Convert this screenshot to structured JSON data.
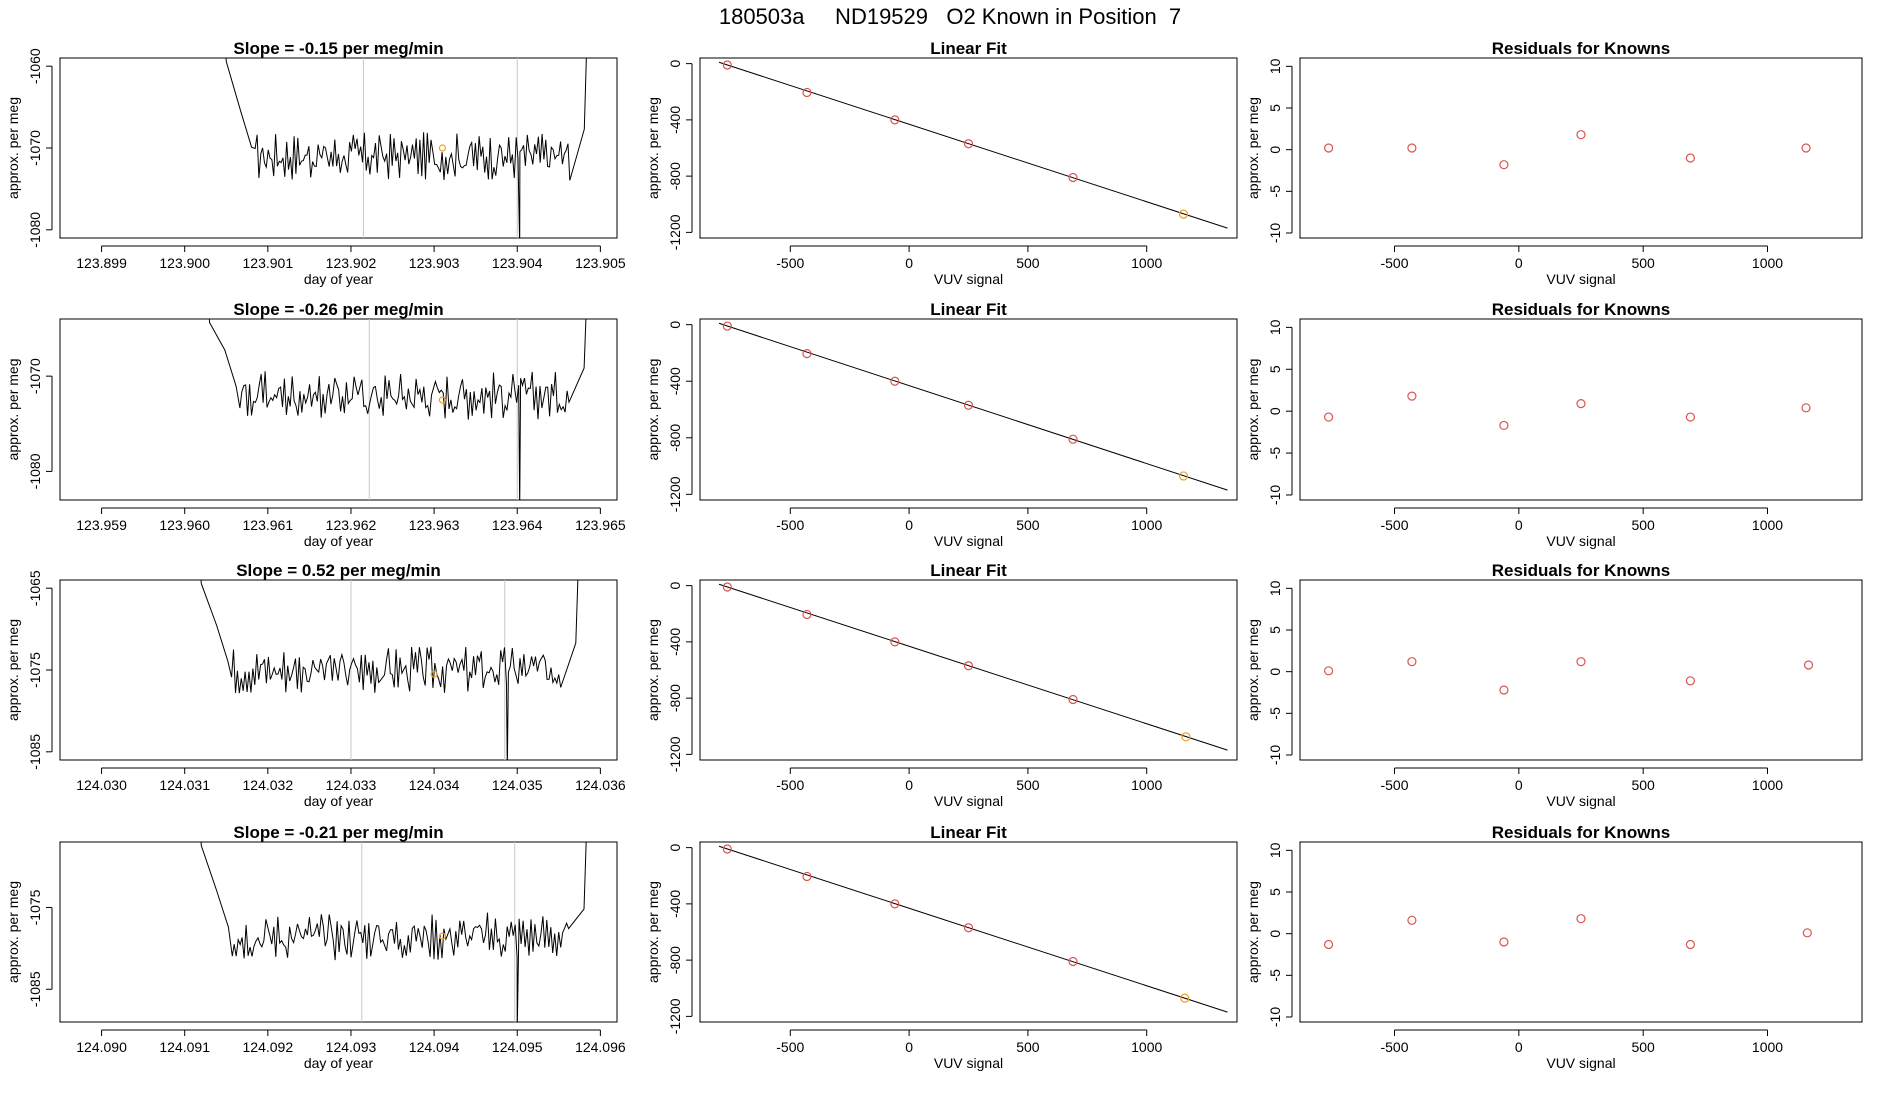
{
  "page_title": "180503a     ND19529   O2 Known in Position  7",
  "colors": {
    "trace": "#000000",
    "point": "#d9534f",
    "highlight": "#f0a020",
    "fit_line": "#000000",
    "vline": "#c8c8c8",
    "axes": "#000000"
  },
  "chart_data": [
    {
      "type": "line",
      "panel": "time-series",
      "row": 1,
      "title": "Slope =  -0.15  per meg/min",
      "xlabel": "day of year",
      "ylabel": "approx. per meg",
      "xlim": [
        123.8985,
        123.9052
      ],
      "ylim": [
        -1081,
        -1059
      ],
      "xticks": [
        "123.899",
        "123.900",
        "123.901",
        "123.902",
        "123.903",
        "123.904",
        "123.905"
      ],
      "yticks": [
        "-1060",
        "-1070",
        "-1080"
      ],
      "vlines": [
        123.90215,
        123.904
      ],
      "trace_start": 123.9005,
      "trace_end": 123.90485,
      "trace_center": -1071,
      "highlight_point": {
        "x": 123.9031,
        "y": -1070
      }
    },
    {
      "type": "scatter",
      "panel": "linear-fit",
      "row": 1,
      "title": "Linear Fit",
      "xlabel": "VUV signal",
      "ylabel": "approx. per meg",
      "xlim": [
        -880,
        1380
      ],
      "ylim": [
        -1240,
        40
      ],
      "xticks": [
        "-500",
        "0",
        "500",
        "1000"
      ],
      "yticks": [
        "0",
        "-400",
        "-800",
        "-1200"
      ],
      "x": [
        -765,
        -430,
        -60,
        250,
        690,
        1155
      ],
      "y": [
        -10,
        -205,
        -400,
        -570,
        -810,
        -1070
      ],
      "fit_line": {
        "x": [
          -800,
          1340
        ],
        "y": [
          10,
          -1170
        ]
      },
      "highlight_index": 5
    },
    {
      "type": "scatter",
      "panel": "residuals",
      "row": 1,
      "title": "Residuals for Knowns",
      "xlabel": "VUV signal",
      "ylabel": "approx. per meg",
      "xlim": [
        -880,
        1380
      ],
      "ylim": [
        -10.6,
        11
      ],
      "xticks": [
        "-500",
        "0",
        "500",
        "1000"
      ],
      "yticks": [
        "10",
        "5",
        "0",
        "-5",
        "-10"
      ],
      "x": [
        -765,
        -430,
        -60,
        250,
        690,
        1155
      ],
      "y": [
        0.2,
        0.2,
        -1.8,
        1.8,
        -1.0,
        0.2
      ]
    },
    {
      "type": "line",
      "panel": "time-series",
      "row": 2,
      "title": "Slope =  -0.26  per meg/min",
      "xlabel": "day of year",
      "ylabel": "approx. per meg",
      "xlim": [
        123.9585,
        123.9652
      ],
      "ylim": [
        -1083,
        -1064
      ],
      "xticks": [
        "123.959",
        "123.960",
        "123.961",
        "123.962",
        "123.963",
        "123.964",
        "123.965"
      ],
      "yticks": [
        "-1070",
        "-1080"
      ],
      "vlines": [
        123.96222,
        123.964
      ],
      "trace_start": 123.9603,
      "trace_end": 123.96485,
      "trace_center": -1072,
      "highlight_point": {
        "x": 123.9631,
        "y": -1072.5
      }
    },
    {
      "type": "scatter",
      "panel": "linear-fit",
      "row": 2,
      "title": "Linear Fit",
      "xlabel": "VUV signal",
      "ylabel": "approx. per meg",
      "xlim": [
        -880,
        1380
      ],
      "ylim": [
        -1240,
        40
      ],
      "xticks": [
        "-500",
        "0",
        "500",
        "1000"
      ],
      "yticks": [
        "0",
        "-400",
        "-800",
        "-1200"
      ],
      "x": [
        -765,
        -430,
        -60,
        250,
        690,
        1155
      ],
      "y": [
        -10,
        -205,
        -400,
        -570,
        -810,
        -1070
      ],
      "fit_line": {
        "x": [
          -800,
          1340
        ],
        "y": [
          10,
          -1170
        ]
      },
      "highlight_index": 5
    },
    {
      "type": "scatter",
      "panel": "residuals",
      "row": 2,
      "title": "Residuals for Knowns",
      "xlabel": "VUV signal",
      "ylabel": "approx. per meg",
      "xlim": [
        -880,
        1380
      ],
      "ylim": [
        -10.6,
        11
      ],
      "xticks": [
        "-500",
        "0",
        "500",
        "1000"
      ],
      "yticks": [
        "10",
        "5",
        "0",
        "-5",
        "-10"
      ],
      "x": [
        -765,
        -430,
        -60,
        250,
        690,
        1155
      ],
      "y": [
        -0.7,
        1.8,
        -1.7,
        0.9,
        -0.7,
        0.4
      ]
    },
    {
      "type": "line",
      "panel": "time-series",
      "row": 3,
      "title": "Slope =  0.52  per meg/min",
      "xlabel": "day of year",
      "ylabel": "approx. per meg",
      "xlim": [
        124.0295,
        124.0362
      ],
      "ylim": [
        -1086,
        -1064
      ],
      "xticks": [
        "124.030",
        "124.031",
        "124.032",
        "124.033",
        "124.034",
        "124.035",
        "124.036"
      ],
      "yticks": [
        "-1065",
        "-1075",
        "-1085"
      ],
      "vlines": [
        124.033,
        124.03485
      ],
      "trace_start": 124.0312,
      "trace_end": 124.03575,
      "trace_center": -1075,
      "highlight_point": {
        "x": 124.034,
        "y": -1075.5
      }
    },
    {
      "type": "scatter",
      "panel": "linear-fit",
      "row": 3,
      "title": "Linear Fit",
      "xlabel": "VUV signal",
      "ylabel": "approx. per meg",
      "xlim": [
        -880,
        1380
      ],
      "ylim": [
        -1240,
        40
      ],
      "xticks": [
        "-500",
        "0",
        "500",
        "1000"
      ],
      "yticks": [
        "0",
        "-400",
        "-800",
        "-1200"
      ],
      "x": [
        -765,
        -430,
        -60,
        250,
        690,
        1165
      ],
      "y": [
        -10,
        -205,
        -400,
        -570,
        -810,
        -1075
      ],
      "fit_line": {
        "x": [
          -800,
          1340
        ],
        "y": [
          10,
          -1170
        ]
      },
      "highlight_index": 5
    },
    {
      "type": "scatter",
      "panel": "residuals",
      "row": 3,
      "title": "Residuals for Knowns",
      "xlabel": "VUV signal",
      "ylabel": "approx. per meg",
      "xlim": [
        -880,
        1380
      ],
      "ylim": [
        -10.6,
        11
      ],
      "xticks": [
        "-500",
        "0",
        "500",
        "1000"
      ],
      "yticks": [
        "10",
        "5",
        "0",
        "-5",
        "-10"
      ],
      "x": [
        -765,
        -430,
        -60,
        250,
        690,
        1165
      ],
      "y": [
        0.1,
        1.2,
        -2.2,
        1.2,
        -1.1,
        0.8
      ]
    },
    {
      "type": "line",
      "panel": "time-series",
      "row": 4,
      "title": "Slope =  -0.21  per meg/min",
      "xlabel": "day of year",
      "ylabel": "approx. per meg",
      "xlim": [
        124.0895,
        124.0962
      ],
      "ylim": [
        -1089,
        -1067
      ],
      "xticks": [
        "124.090",
        "124.091",
        "124.092",
        "124.093",
        "124.094",
        "124.095",
        "124.096"
      ],
      "yticks": [
        "-1075",
        "-1085"
      ],
      "vlines": [
        124.09313,
        124.09497
      ],
      "trace_start": 124.0912,
      "trace_end": 124.09585,
      "trace_center": -1078.5,
      "highlight_point": {
        "x": 124.0941,
        "y": -1078.5
      }
    },
    {
      "type": "scatter",
      "panel": "linear-fit",
      "row": 4,
      "title": "Linear Fit",
      "xlabel": "VUV signal",
      "ylabel": "approx. per meg",
      "xlim": [
        -880,
        1380
      ],
      "ylim": [
        -1240,
        40
      ],
      "xticks": [
        "-500",
        "0",
        "500",
        "1000"
      ],
      "yticks": [
        "0",
        "-400",
        "-800",
        "-1200"
      ],
      "x": [
        -765,
        -430,
        -60,
        250,
        690,
        1160
      ],
      "y": [
        -10,
        -205,
        -400,
        -570,
        -810,
        -1070
      ],
      "fit_line": {
        "x": [
          -800,
          1340
        ],
        "y": [
          10,
          -1170
        ]
      },
      "highlight_index": 5
    },
    {
      "type": "scatter",
      "panel": "residuals",
      "row": 4,
      "title": "Residuals for Knowns",
      "xlabel": "VUV signal",
      "ylabel": "approx. per meg",
      "xlim": [
        -880,
        1380
      ],
      "ylim": [
        -10.6,
        11
      ],
      "xticks": [
        "-500",
        "0",
        "500",
        "1000"
      ],
      "yticks": [
        "10",
        "5",
        "0",
        "-5",
        "-10"
      ],
      "x": [
        -765,
        -430,
        -60,
        250,
        690,
        1160
      ],
      "y": [
        -1.3,
        1.6,
        -1.0,
        1.8,
        -1.3,
        0.1
      ]
    }
  ]
}
